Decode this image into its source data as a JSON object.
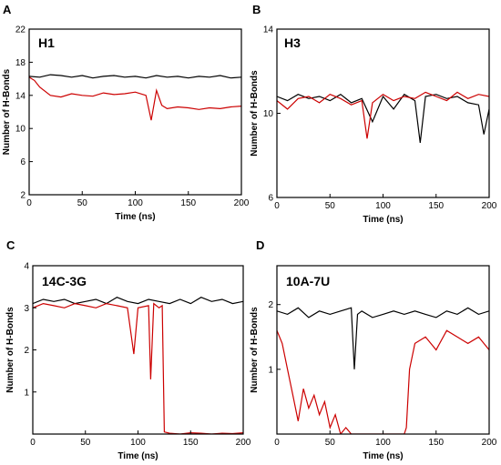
{
  "chart_data": [
    {
      "type": "line",
      "panel_label": "A",
      "title": "H1",
      "xlabel": "Time (ns)",
      "ylabel": "Number of H-Bonds",
      "xlim": [
        0,
        200
      ],
      "ylim": [
        2,
        22
      ],
      "xticks": [
        "0",
        "50",
        "100",
        "150",
        "200"
      ],
      "yticks": [
        "2",
        "6",
        "10",
        "14",
        "18",
        "22"
      ],
      "series": [
        {
          "color": "#000000",
          "x": [
            0,
            10,
            20,
            30,
            40,
            50,
            60,
            70,
            80,
            90,
            100,
            110,
            120,
            130,
            140,
            150,
            160,
            170,
            180,
            190,
            200
          ],
          "y": [
            16.3,
            16.2,
            16.5,
            16.4,
            16.2,
            16.4,
            16.1,
            16.3,
            16.4,
            16.2,
            16.3,
            16.1,
            16.4,
            16.2,
            16.3,
            16.1,
            16.3,
            16.2,
            16.4,
            16.1,
            16.2
          ]
        },
        {
          "color": "#cc0000",
          "x": [
            0,
            5,
            10,
            20,
            30,
            40,
            50,
            60,
            70,
            80,
            90,
            100,
            110,
            115,
            120,
            125,
            130,
            140,
            150,
            160,
            170,
            180,
            190,
            200
          ],
          "y": [
            16.2,
            15.8,
            15.0,
            14.0,
            13.8,
            14.2,
            14.0,
            13.9,
            14.3,
            14.1,
            14.2,
            14.4,
            14.0,
            11.0,
            14.6,
            12.8,
            12.4,
            12.6,
            12.5,
            12.3,
            12.5,
            12.4,
            12.6,
            12.7
          ]
        }
      ]
    },
    {
      "type": "line",
      "panel_label": "B",
      "title": "H3",
      "xlabel": "Time (ns)",
      "ylabel": "Number of H-Bonds",
      "xlim": [
        0,
        200
      ],
      "ylim": [
        6,
        14
      ],
      "xticks": [
        "0",
        "50",
        "100",
        "150",
        "200"
      ],
      "yticks": [
        "6",
        "10",
        "14"
      ],
      "series": [
        {
          "color": "#000000",
          "x": [
            0,
            10,
            20,
            30,
            40,
            50,
            60,
            70,
            80,
            90,
            100,
            110,
            120,
            130,
            135,
            140,
            150,
            160,
            170,
            180,
            190,
            195,
            200
          ],
          "y": [
            10.8,
            10.6,
            10.9,
            10.7,
            10.8,
            10.6,
            10.9,
            10.5,
            10.7,
            9.6,
            10.8,
            10.2,
            10.9,
            10.6,
            8.6,
            10.8,
            10.9,
            10.7,
            10.8,
            10.5,
            10.4,
            9.0,
            10.2
          ]
        },
        {
          "color": "#cc0000",
          "x": [
            0,
            10,
            20,
            30,
            40,
            50,
            60,
            70,
            80,
            85,
            90,
            100,
            110,
            120,
            130,
            140,
            150,
            160,
            170,
            180,
            190,
            200
          ],
          "y": [
            10.6,
            10.2,
            10.7,
            10.8,
            10.5,
            10.9,
            10.7,
            10.4,
            10.6,
            8.8,
            10.5,
            10.9,
            10.6,
            10.8,
            10.7,
            11.0,
            10.8,
            10.6,
            11.0,
            10.7,
            10.9,
            10.8
          ]
        }
      ]
    },
    {
      "type": "line",
      "panel_label": "C",
      "title": "14C-3G",
      "xlabel": "Time (ns)",
      "ylabel": "Number of H-Bonds",
      "xlim": [
        0,
        200
      ],
      "ylim": [
        0,
        4
      ],
      "xticks": [
        "0",
        "50",
        "100",
        "150",
        "200"
      ],
      "yticks": [
        "1",
        "2",
        "3",
        "4"
      ],
      "series": [
        {
          "color": "#000000",
          "x": [
            0,
            10,
            20,
            30,
            40,
            50,
            60,
            70,
            80,
            90,
            100,
            110,
            120,
            130,
            140,
            150,
            160,
            170,
            180,
            190,
            200
          ],
          "y": [
            3.1,
            3.2,
            3.15,
            3.2,
            3.1,
            3.15,
            3.2,
            3.1,
            3.25,
            3.15,
            3.1,
            3.2,
            3.15,
            3.1,
            3.2,
            3.1,
            3.25,
            3.15,
            3.2,
            3.1,
            3.15
          ]
        },
        {
          "color": "#cc0000",
          "x": [
            0,
            10,
            20,
            30,
            40,
            50,
            60,
            70,
            80,
            90,
            96,
            100,
            110,
            112,
            115,
            120,
            123,
            125,
            130,
            140,
            150,
            160,
            170,
            180,
            190,
            200
          ],
          "y": [
            3.0,
            3.1,
            3.05,
            3.0,
            3.1,
            3.05,
            3.0,
            3.1,
            3.05,
            3.0,
            1.9,
            3.0,
            3.05,
            1.3,
            3.1,
            3.0,
            3.05,
            0.05,
            0.02,
            0.0,
            0.03,
            0.02,
            0.0,
            0.02,
            0.01,
            0.03
          ]
        }
      ]
    },
    {
      "type": "line",
      "panel_label": "D",
      "title": "10A-7U",
      "xlabel": "Time (ns)",
      "ylabel": "Number of H-Bonds",
      "xlim": [
        0,
        200
      ],
      "ylim": [
        0,
        2.6
      ],
      "xticks": [
        "0",
        "50",
        "100",
        "150",
        "200"
      ],
      "yticks": [
        "1",
        "2"
      ],
      "series": [
        {
          "color": "#000000",
          "x": [
            0,
            10,
            20,
            30,
            40,
            50,
            60,
            70,
            73,
            76,
            80,
            90,
            100,
            110,
            120,
            130,
            140,
            150,
            160,
            170,
            180,
            190,
            200
          ],
          "y": [
            1.9,
            1.85,
            1.95,
            1.8,
            1.9,
            1.85,
            1.9,
            1.95,
            1.0,
            1.85,
            1.9,
            1.8,
            1.85,
            1.9,
            1.85,
            1.9,
            1.85,
            1.8,
            1.9,
            1.85,
            1.95,
            1.85,
            1.9
          ]
        },
        {
          "color": "#cc0000",
          "x": [
            0,
            5,
            10,
            15,
            20,
            25,
            30,
            35,
            40,
            45,
            50,
            55,
            60,
            65,
            70,
            80,
            90,
            100,
            110,
            120,
            122,
            125,
            130,
            140,
            150,
            160,
            170,
            180,
            190,
            200
          ],
          "y": [
            1.6,
            1.4,
            1.0,
            0.6,
            0.2,
            0.7,
            0.4,
            0.6,
            0.3,
            0.5,
            0.1,
            0.3,
            0.0,
            0.1,
            0.0,
            0.0,
            0.0,
            0.0,
            0.0,
            0.0,
            0.1,
            1.0,
            1.4,
            1.5,
            1.3,
            1.6,
            1.5,
            1.4,
            1.5,
            1.3
          ]
        }
      ]
    }
  ]
}
